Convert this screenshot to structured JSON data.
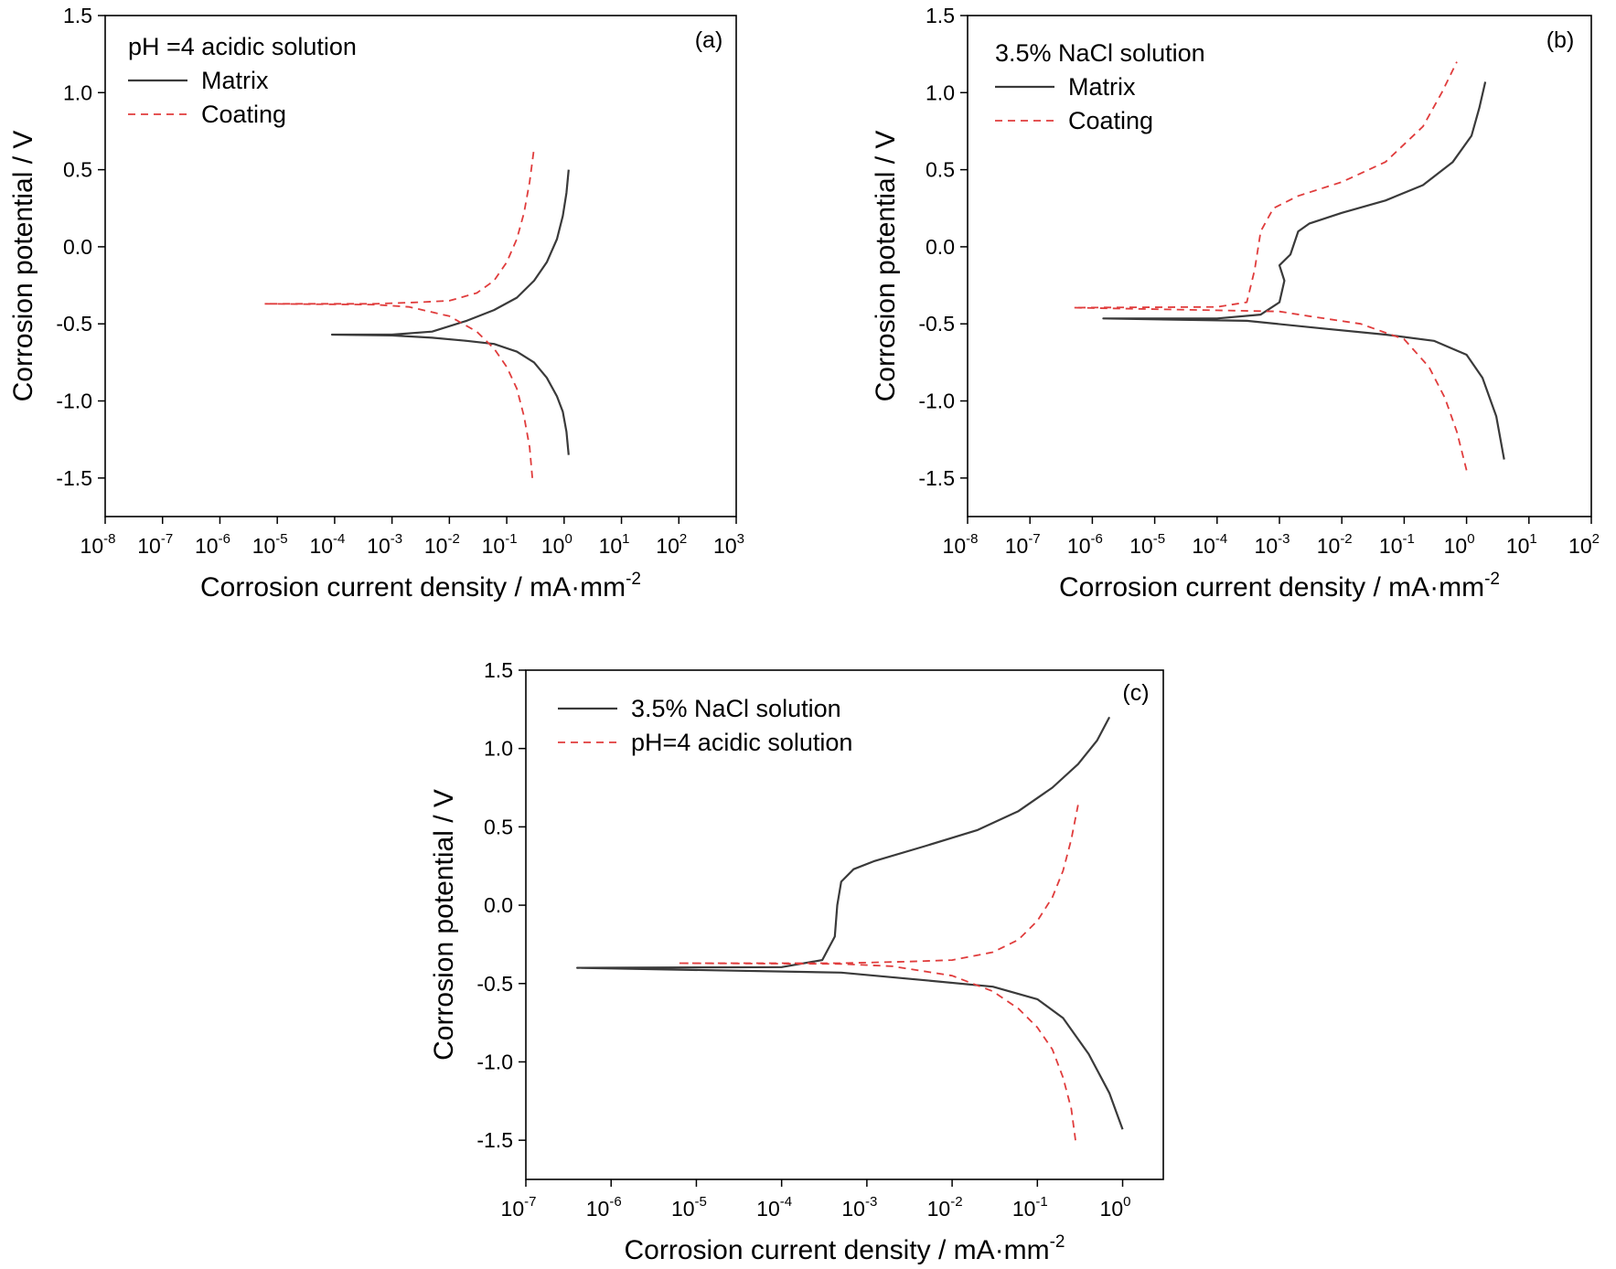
{
  "chart_data": [
    {
      "id": "a",
      "type": "line",
      "panel_label": "(a)",
      "xlabel": "Corrosion current density / mA·mm",
      "xlabel_exponent": "-2",
      "ylabel": "Corrosion potential / V",
      "x_scale": "log",
      "xlim": [
        1e-08,
        1000
      ],
      "ylim": [
        -1.75,
        1.5
      ],
      "x_ticks": [
        {
          "base": "10",
          "exp": "-8",
          "v": 1e-08
        },
        {
          "base": "10",
          "exp": "-7",
          "v": 1e-07
        },
        {
          "base": "10",
          "exp": "-6",
          "v": 1e-06
        },
        {
          "base": "10",
          "exp": "-5",
          "v": 1e-05
        },
        {
          "base": "10",
          "exp": "-4",
          "v": 0.0001
        },
        {
          "base": "10",
          "exp": "-3",
          "v": 0.001
        },
        {
          "base": "10",
          "exp": "-2",
          "v": 0.01
        },
        {
          "base": "10",
          "exp": "-1",
          "v": 0.1
        },
        {
          "base": "10",
          "exp": "0",
          "v": 1
        },
        {
          "base": "10",
          "exp": "1",
          "v": 10
        },
        {
          "base": "10",
          "exp": "2",
          "v": 100
        },
        {
          "base": "10",
          "exp": "3",
          "v": 1000
        }
      ],
      "y_ticks": [
        {
          "label": "1.5",
          "v": 1.5
        },
        {
          "label": "1.0",
          "v": 1.0
        },
        {
          "label": "0.5",
          "v": 0.5
        },
        {
          "label": "0.0",
          "v": 0.0
        },
        {
          "label": "-0.5",
          "v": -0.5
        },
        {
          "label": "-1.0",
          "v": -1.0
        },
        {
          "label": "-1.5",
          "v": -1.5
        }
      ],
      "legend_title": "pH =4 acidic solution",
      "legend_position": "top-left",
      "grid": false,
      "series": [
        {
          "name": "Matrix",
          "color": "#3a3a3a",
          "dash": "solid",
          "points": [
            [
              1.2,
              -1.35
            ],
            [
              1.1,
              -1.2
            ],
            [
              0.95,
              -1.07
            ],
            [
              0.75,
              -0.97
            ],
            [
              0.5,
              -0.85
            ],
            [
              0.3,
              -0.75
            ],
            [
              0.15,
              -0.68
            ],
            [
              0.06,
              -0.63
            ],
            [
              0.02,
              -0.61
            ],
            [
              0.005,
              -0.59
            ],
            [
              0.001,
              -0.575
            ],
            [
              9e-05,
              -0.57
            ],
            [
              0.001,
              -0.57
            ],
            [
              0.005,
              -0.55
            ],
            [
              0.02,
              -0.48
            ],
            [
              0.06,
              -0.41
            ],
            [
              0.15,
              -0.33
            ],
            [
              0.3,
              -0.22
            ],
            [
              0.5,
              -0.1
            ],
            [
              0.75,
              0.05
            ],
            [
              0.95,
              0.2
            ],
            [
              1.1,
              0.35
            ],
            [
              1.2,
              0.5
            ]
          ]
        },
        {
          "name": "Coating",
          "color": "#e03c3c",
          "dash": "dashed",
          "points": [
            [
              0.28,
              -1.5
            ],
            [
              0.25,
              -1.3
            ],
            [
              0.2,
              -1.1
            ],
            [
              0.15,
              -0.92
            ],
            [
              0.1,
              -0.78
            ],
            [
              0.06,
              -0.66
            ],
            [
              0.03,
              -0.55
            ],
            [
              0.01,
              -0.45
            ],
            [
              0.002,
              -0.39
            ],
            [
              0.0005,
              -0.375
            ],
            [
              6e-06,
              -0.37
            ],
            [
              0.0005,
              -0.37
            ],
            [
              0.003,
              -0.36
            ],
            [
              0.01,
              -0.35
            ],
            [
              0.03,
              -0.3
            ],
            [
              0.06,
              -0.22
            ],
            [
              0.1,
              -0.1
            ],
            [
              0.15,
              0.05
            ],
            [
              0.2,
              0.22
            ],
            [
              0.25,
              0.42
            ],
            [
              0.3,
              0.64
            ]
          ]
        }
      ]
    },
    {
      "id": "b",
      "type": "line",
      "panel_label": "(b)",
      "xlabel": "Corrosion current density / mA·mm",
      "xlabel_exponent": "-2",
      "ylabel": "Corrosion potential / V",
      "x_scale": "log",
      "xlim": [
        1e-08,
        100
      ],
      "ylim": [
        -1.75,
        1.5
      ],
      "x_ticks": [
        {
          "base": "10",
          "exp": "-8",
          "v": 1e-08
        },
        {
          "base": "10",
          "exp": "-7",
          "v": 1e-07
        },
        {
          "base": "10",
          "exp": "-6",
          "v": 1e-06
        },
        {
          "base": "10",
          "exp": "-5",
          "v": 1e-05
        },
        {
          "base": "10",
          "exp": "-4",
          "v": 0.0001
        },
        {
          "base": "10",
          "exp": "-3",
          "v": 0.001
        },
        {
          "base": "10",
          "exp": "-2",
          "v": 0.01
        },
        {
          "base": "10",
          "exp": "-1",
          "v": 0.1
        },
        {
          "base": "10",
          "exp": "0",
          "v": 1
        },
        {
          "base": "10",
          "exp": "1",
          "v": 10
        },
        {
          "base": "10",
          "exp": "2",
          "v": 100
        }
      ],
      "y_ticks": [
        {
          "label": "1.5",
          "v": 1.5
        },
        {
          "label": "1.0",
          "v": 1.0
        },
        {
          "label": "0.5",
          "v": 0.5
        },
        {
          "label": "0.0",
          "v": 0.0
        },
        {
          "label": "-0.5",
          "v": -0.5
        },
        {
          "label": "-1.0",
          "v": -1.0
        },
        {
          "label": "-1.5",
          "v": -1.5
        }
      ],
      "legend_title": "3.5% NaCl solution",
      "legend_position": "top-left",
      "grid": false,
      "series": [
        {
          "name": "Matrix",
          "color": "#3a3a3a",
          "dash": "solid",
          "points": [
            [
              4,
              -1.38
            ],
            [
              3,
              -1.1
            ],
            [
              1.8,
              -0.85
            ],
            [
              1,
              -0.7
            ],
            [
              0.3,
              -0.61
            ],
            [
              0.05,
              -0.57
            ],
            [
              0.005,
              -0.53
            ],
            [
              0.0003,
              -0.48
            ],
            [
              1.5e-06,
              -0.465
            ],
            [
              0.0001,
              -0.465
            ],
            [
              0.0005,
              -0.44
            ],
            [
              0.001,
              -0.36
            ],
            [
              0.0012,
              -0.22
            ],
            [
              0.001,
              -0.12
            ],
            [
              0.0015,
              -0.05
            ],
            [
              0.002,
              0.1
            ],
            [
              0.003,
              0.15
            ],
            [
              0.01,
              0.22
            ],
            [
              0.05,
              0.3
            ],
            [
              0.2,
              0.4
            ],
            [
              0.6,
              0.55
            ],
            [
              1.2,
              0.72
            ],
            [
              1.6,
              0.9
            ],
            [
              2,
              1.07
            ]
          ]
        },
        {
          "name": "Coating",
          "color": "#e03c3c",
          "dash": "dashed",
          "points": [
            [
              1,
              -1.45
            ],
            [
              0.7,
              -1.2
            ],
            [
              0.45,
              -0.98
            ],
            [
              0.25,
              -0.78
            ],
            [
              0.1,
              -0.6
            ],
            [
              0.02,
              -0.5
            ],
            [
              0.003,
              -0.45
            ],
            [
              0.001,
              -0.42
            ],
            [
              5e-07,
              -0.395
            ],
            [
              0.0001,
              -0.39
            ],
            [
              0.0003,
              -0.36
            ],
            [
              0.0004,
              -0.15
            ],
            [
              0.0005,
              0.1
            ],
            [
              0.0008,
              0.25
            ],
            [
              0.002,
              0.33
            ],
            [
              0.01,
              0.42
            ],
            [
              0.05,
              0.55
            ],
            [
              0.2,
              0.78
            ],
            [
              0.4,
              1.0
            ],
            [
              0.7,
              1.2
            ]
          ]
        }
      ]
    },
    {
      "id": "c",
      "type": "line",
      "panel_label": "(c)",
      "xlabel": "Corrosion current density / mA·mm",
      "xlabel_exponent": "-2",
      "ylabel": "Corrosion potential / V",
      "x_scale": "log",
      "xlim": [
        1e-07,
        3
      ],
      "ylim": [
        -1.75,
        1.5
      ],
      "x_ticks": [
        {
          "base": "10",
          "exp": "-7",
          "v": 1e-07
        },
        {
          "base": "10",
          "exp": "-6",
          "v": 1e-06
        },
        {
          "base": "10",
          "exp": "-5",
          "v": 1e-05
        },
        {
          "base": "10",
          "exp": "-4",
          "v": 0.0001
        },
        {
          "base": "10",
          "exp": "-3",
          "v": 0.001
        },
        {
          "base": "10",
          "exp": "-2",
          "v": 0.01
        },
        {
          "base": "10",
          "exp": "-1",
          "v": 0.1
        },
        {
          "base": "10",
          "exp": "0",
          "v": 1
        }
      ],
      "y_ticks": [
        {
          "label": "1.5",
          "v": 1.5
        },
        {
          "label": "1.0",
          "v": 1.0
        },
        {
          "label": "0.5",
          "v": 0.5
        },
        {
          "label": "0.0",
          "v": 0.0
        },
        {
          "label": "-0.5",
          "v": -0.5
        },
        {
          "label": "-1.0",
          "v": -1.0
        },
        {
          "label": "-1.5",
          "v": -1.5
        }
      ],
      "legend_title": "",
      "legend_position": "top-left",
      "grid": false,
      "series": [
        {
          "name": "3.5% NaCl solution",
          "color": "#3a3a3a",
          "dash": "solid",
          "points": [
            [
              1,
              -1.43
            ],
            [
              0.7,
              -1.2
            ],
            [
              0.4,
              -0.95
            ],
            [
              0.2,
              -0.72
            ],
            [
              0.1,
              -0.6
            ],
            [
              0.03,
              -0.52
            ],
            [
              0.005,
              -0.48
            ],
            [
              0.0005,
              -0.43
            ],
            [
              4e-07,
              -0.4
            ],
            [
              0.0001,
              -0.395
            ],
            [
              0.0003,
              -0.35
            ],
            [
              0.00042,
              -0.2
            ],
            [
              0.00045,
              0.0
            ],
            [
              0.0005,
              0.15
            ],
            [
              0.0007,
              0.23
            ],
            [
              0.0012,
              0.28
            ],
            [
              0.005,
              0.38
            ],
            [
              0.02,
              0.48
            ],
            [
              0.06,
              0.6
            ],
            [
              0.15,
              0.75
            ],
            [
              0.3,
              0.9
            ],
            [
              0.5,
              1.05
            ],
            [
              0.7,
              1.2
            ]
          ]
        },
        {
          "name": "pH=4 acidic solution",
          "color": "#e03c3c",
          "dash": "dashed",
          "points": [
            [
              0.28,
              -1.5
            ],
            [
              0.25,
              -1.3
            ],
            [
              0.2,
              -1.1
            ],
            [
              0.15,
              -0.92
            ],
            [
              0.1,
              -0.78
            ],
            [
              0.06,
              -0.66
            ],
            [
              0.03,
              -0.55
            ],
            [
              0.01,
              -0.45
            ],
            [
              0.002,
              -0.39
            ],
            [
              0.0005,
              -0.375
            ],
            [
              6e-06,
              -0.37
            ],
            [
              0.0005,
              -0.37
            ],
            [
              0.003,
              -0.36
            ],
            [
              0.01,
              -0.35
            ],
            [
              0.03,
              -0.3
            ],
            [
              0.06,
              -0.22
            ],
            [
              0.1,
              -0.1
            ],
            [
              0.15,
              0.05
            ],
            [
              0.2,
              0.22
            ],
            [
              0.25,
              0.42
            ],
            [
              0.3,
              0.64
            ]
          ]
        }
      ]
    }
  ]
}
